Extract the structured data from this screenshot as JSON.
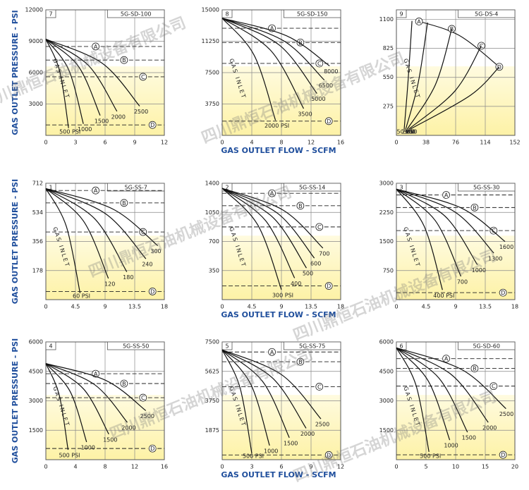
{
  "y_axis_title": "GAS OUTLET PRESSURE - PSI",
  "x_axis_title": "GAS OUTLET FLOW - SCFM",
  "watermark": "四川鼎恒石油机械设备有限公司",
  "chart_data": [
    {
      "type": "line",
      "label": "7",
      "model": "5G-SD-100",
      "inlet_label": "GAS INLET",
      "color": "#111111",
      "xlim": [
        0,
        12
      ],
      "xticks": [
        0,
        3,
        6,
        9,
        12
      ],
      "ylim": [
        0,
        12000
      ],
      "yticks": [
        3000,
        6000,
        9000,
        12000
      ],
      "series": [
        {
          "name": "500 PSI",
          "x": [
            0,
            1.4,
            2.3
          ],
          "values": [
            9200,
            6140,
            700
          ]
        },
        {
          "name": "1000",
          "x": [
            0,
            2.3,
            3.8
          ],
          "values": [
            9200,
            6300,
            1100
          ]
        },
        {
          "name": "1500",
          "x": [
            0,
            3.3,
            5.5
          ],
          "values": [
            9200,
            6600,
            1900
          ]
        },
        {
          "name": "2000",
          "x": [
            0,
            4.3,
            7.2
          ],
          "values": [
            9200,
            6700,
            2300
          ]
        },
        {
          "name": "2500",
          "x": [
            0,
            5.7,
            9.5
          ],
          "values": [
            9200,
            6900,
            2800
          ]
        }
      ],
      "limits": [
        {
          "name": "A",
          "value": 8500
        },
        {
          "name": "B",
          "value": 7200
        },
        {
          "name": "C",
          "value": 5600
        },
        {
          "name": "D",
          "value": 1000
        }
      ]
    },
    {
      "type": "line",
      "label": "8",
      "model": "5G-SD-150",
      "inlet_label": "GAS INLET",
      "color": "#111111",
      "xlim": [
        0,
        16
      ],
      "xticks": [
        0,
        4,
        8,
        12,
        16
      ],
      "ylim": [
        0,
        15000
      ],
      "yticks": [
        3750,
        7500,
        11250,
        15000
      ],
      "series": [
        {
          "name": "2000 PSI",
          "x": [
            0,
            4.3,
            7.2
          ],
          "values": [
            14000,
            9600,
            1800
          ]
        },
        {
          "name": "3500",
          "x": [
            0,
            6.6,
            11
          ],
          "values": [
            14000,
            10100,
            3200
          ]
        },
        {
          "name": "5000",
          "x": [
            0,
            7.7,
            12.8
          ],
          "values": [
            14000,
            10800,
            5000
          ]
        },
        {
          "name": "6500",
          "x": [
            0,
            8.3,
            13.8
          ],
          "values": [
            14000,
            11300,
            6600
          ]
        },
        {
          "name": "8000",
          "x": [
            0,
            8.7,
            14.5
          ],
          "values": [
            14000,
            11900,
            8300
          ]
        }
      ],
      "limits": [
        {
          "name": "A",
          "value": 12800
        },
        {
          "name": "B",
          "value": 11100
        },
        {
          "name": "C",
          "value": 8600
        },
        {
          "name": "D",
          "value": 1700
        }
      ]
    },
    {
      "type": "line",
      "label": "9",
      "model": "5G-DS-4",
      "inlet_label": "GAS INLET",
      "color": "#111111",
      "xlim": [
        0,
        152
      ],
      "xticks": [
        0,
        38,
        76,
        114,
        152
      ],
      "ylim": [
        0,
        1190
      ],
      "yticks": [
        275,
        550,
        825,
        1100
      ],
      "envelope": {
        "x": [
          25,
          80,
          132
        ],
        "values": [
          1090,
          950,
          650
        ]
      },
      "series": [
        {
          "name": "50 PSI",
          "x": [
            20,
            15,
            10
          ],
          "values": [
            1085,
            520,
            60
          ]
        },
        {
          "name": "200",
          "x": [
            40,
            28,
            12
          ],
          "values": [
            1070,
            500,
            60
          ]
        },
        {
          "name": "350",
          "x": [
            71,
            50,
            14
          ],
          "values": [
            1010,
            480,
            60
          ]
        },
        {
          "name": "500",
          "x": [
            109,
            75,
            16
          ],
          "values": [
            850,
            420,
            60
          ]
        },
        {
          "name": "650",
          "x": [
            132,
            95,
            18
          ],
          "values": [
            650,
            380,
            60
          ]
        }
      ],
      "limits": [
        {
          "name": "A",
          "x": 29,
          "value": 1080
        },
        {
          "name": "B",
          "x": 71,
          "value": 1010
        },
        {
          "name": "C",
          "x": 109,
          "value": 850
        },
        {
          "name": "D",
          "x": 132,
          "value": 650
        }
      ]
    },
    {
      "type": "line",
      "label": "1",
      "model": "5G-SS-7",
      "inlet_label": "GAS INLET",
      "color": "#111111",
      "xlim": [
        0,
        18
      ],
      "xticks": [
        0,
        4.5,
        9,
        13.5,
        18
      ],
      "ylim": [
        0,
        712
      ],
      "yticks": [
        178,
        356,
        534,
        712
      ],
      "series": [
        {
          "name": "60 PSI",
          "x": [
            0,
            3.1,
            5.2
          ],
          "values": [
            680,
            450,
            40
          ]
        },
        {
          "name": "120",
          "x": [
            0,
            5.7,
            9.5
          ],
          "values": [
            680,
            482,
            130
          ]
        },
        {
          "name": "180",
          "x": [
            0,
            7.4,
            12.3
          ],
          "values": [
            680,
            496,
            170
          ]
        },
        {
          "name": "240",
          "x": [
            0,
            9.1,
            15.2
          ],
          "values": [
            680,
            525,
            250
          ]
        },
        {
          "name": "300",
          "x": [
            0,
            10.2,
            17
          ],
          "values": [
            680,
            554,
            330
          ]
        }
      ],
      "limits": [
        {
          "name": "A",
          "value": 668
        },
        {
          "name": "B",
          "value": 592
        },
        {
          "name": "C",
          "value": 414
        },
        {
          "name": "D",
          "value": 50
        }
      ]
    },
    {
      "type": "line",
      "label": "2",
      "model": "5G-SS-14",
      "inlet_label": "GAS INLET",
      "color": "#111111",
      "xlim": [
        0,
        18
      ],
      "xticks": [
        0,
        4.5,
        9,
        13.5,
        18
      ],
      "ylim": [
        0,
        1400
      ],
      "yticks": [
        350,
        700,
        1050,
        1400
      ],
      "series": [
        {
          "name": "300 PSI",
          "x": [
            0,
            5.4,
            9
          ],
          "values": [
            1340,
            900,
            120
          ]
        },
        {
          "name": "400",
          "x": [
            0,
            6.6,
            11
          ],
          "values": [
            1340,
            950,
            260
          ]
        },
        {
          "name": "500",
          "x": [
            0,
            7.7,
            12.8
          ],
          "values": [
            1340,
            990,
            380
          ]
        },
        {
          "name": "600",
          "x": [
            0,
            8.4,
            14
          ],
          "values": [
            1340,
            1040,
            500
          ]
        },
        {
          "name": "700",
          "x": [
            0,
            9.2,
            15.3
          ],
          "values": [
            1340,
            1080,
            620
          ]
        }
      ],
      "limits": [
        {
          "name": "A",
          "value": 1280
        },
        {
          "name": "B",
          "value": 1130
        },
        {
          "name": "C",
          "value": 875
        },
        {
          "name": "D",
          "value": 165
        }
      ]
    },
    {
      "type": "line",
      "label": "3",
      "model": "5G-SS-30",
      "inlet_label": "GAS INLET",
      "color": "#111111",
      "xlim": [
        0,
        18
      ],
      "xticks": [
        0,
        4.5,
        9,
        13.5,
        18
      ],
      "ylim": [
        0,
        3000
      ],
      "yticks": [
        750,
        1500,
        2250,
        3000
      ],
      "series": [
        {
          "name": "400 PSI",
          "x": [
            0,
            4.2,
            7
          ],
          "values": [
            2850,
            1900,
            250
          ]
        },
        {
          "name": "700",
          "x": [
            0,
            5.9,
            9.8
          ],
          "values": [
            2850,
            2040,
            600
          ]
        },
        {
          "name": "1000",
          "x": [
            0,
            7.4,
            12.3
          ],
          "values": [
            2850,
            2150,
            900
          ]
        },
        {
          "name": "1300",
          "x": [
            0,
            8.9,
            14.8
          ],
          "values": [
            2850,
            2260,
            1200
          ]
        },
        {
          "name": "1600",
          "x": [
            0,
            9.9,
            16.5
          ],
          "values": [
            2850,
            2360,
            1500
          ]
        }
      ],
      "limits": [
        {
          "name": "A",
          "value": 2700
        },
        {
          "name": "B",
          "value": 2375
        },
        {
          "name": "C",
          "value": 1780
        },
        {
          "name": "D",
          "value": 180
        }
      ]
    },
    {
      "type": "line",
      "label": "4",
      "model": "5G-SS-50",
      "inlet_label": "GAS INLET",
      "color": "#111111",
      "xlim": [
        0,
        16
      ],
      "xticks": [
        0,
        4,
        8,
        12,
        16
      ],
      "ylim": [
        0,
        6000
      ],
      "yticks": [
        1500,
        3000,
        4500,
        6000
      ],
      "series": [
        {
          "name": "500 PSI",
          "x": [
            0,
            1.8,
            3
          ],
          "values": [
            4900,
            3300,
            500
          ]
        },
        {
          "name": "1000",
          "x": [
            0,
            3.3,
            5.5
          ],
          "values": [
            4900,
            3460,
            900
          ]
        },
        {
          "name": "1500",
          "x": [
            0,
            5.1,
            8.5
          ],
          "values": [
            4900,
            3600,
            1300
          ]
        },
        {
          "name": "2000",
          "x": [
            0,
            6.6,
            11
          ],
          "values": [
            4900,
            3820,
            1900
          ]
        },
        {
          "name": "2500",
          "x": [
            0,
            8.1,
            13.5
          ],
          "values": [
            4900,
            4040,
            2500
          ]
        }
      ],
      "limits": [
        {
          "name": "A",
          "value": 4380
        },
        {
          "name": "B",
          "value": 3880
        },
        {
          "name": "C",
          "value": 3160
        },
        {
          "name": "D",
          "value": 570
        }
      ]
    },
    {
      "type": "line",
      "label": "5",
      "model": "5G-SS-75",
      "inlet_label": "GAS INLET",
      "color": "#111111",
      "xlim": [
        0,
        12
      ],
      "xticks": [
        0,
        3,
        6,
        9,
        12
      ],
      "ylim": [
        0,
        7500
      ],
      "yticks": [
        1875,
        3750,
        5625,
        7500
      ],
      "series": [
        {
          "name": "500 PSI",
          "x": [
            0,
            1.8,
            3
          ],
          "values": [
            7000,
            4600,
            400
          ]
        },
        {
          "name": "1000",
          "x": [
            0,
            2.9,
            4.8
          ],
          "values": [
            7000,
            4800,
            900
          ]
        },
        {
          "name": "1500",
          "x": [
            0,
            4.1,
            6.8
          ],
          "values": [
            7000,
            4980,
            1400
          ]
        },
        {
          "name": "2000",
          "x": [
            0,
            5.1,
            8.5
          ],
          "values": [
            7000,
            5200,
            2000
          ]
        },
        {
          "name": "2500",
          "x": [
            0,
            6,
            10
          ],
          "values": [
            7000,
            5420,
            2600
          ]
        }
      ],
      "limits": [
        {
          "name": "A",
          "value": 6860
        },
        {
          "name": "B",
          "value": 6240
        },
        {
          "name": "C",
          "value": 4650
        },
        {
          "name": "D",
          "value": 300
        }
      ]
    },
    {
      "type": "line",
      "label": "6",
      "model": "5G-SD-60",
      "inlet_label": "GAS INLET",
      "color": "#111111",
      "xlim": [
        0,
        20
      ],
      "xticks": [
        0,
        5,
        10,
        15,
        20
      ],
      "ylim": [
        0,
        6000
      ],
      "yticks": [
        1500,
        3000,
        4500,
        6000
      ],
      "series": [
        {
          "name": "500 PSI",
          "x": [
            0,
            3.3,
            5.5
          ],
          "values": [
            5700,
            3800,
            400
          ]
        },
        {
          "name": "1000",
          "x": [
            0,
            5.4,
            9
          ],
          "values": [
            5700,
            4000,
            1000
          ]
        },
        {
          "name": "1500",
          "x": [
            0,
            7.2,
            12
          ],
          "values": [
            5700,
            4150,
            1400
          ]
        },
        {
          "name": "2000",
          "x": [
            0,
            9.3,
            15.5
          ],
          "values": [
            5700,
            4330,
            1900
          ]
        },
        {
          "name": "2500",
          "x": [
            0,
            11.1,
            18.5
          ],
          "values": [
            5700,
            4580,
            2600
          ]
        }
      ],
      "limits": [
        {
          "name": "A",
          "value": 5150
        },
        {
          "name": "B",
          "value": 4650
        },
        {
          "name": "C",
          "value": 3750
        },
        {
          "name": "D",
          "value": 250
        }
      ]
    }
  ]
}
